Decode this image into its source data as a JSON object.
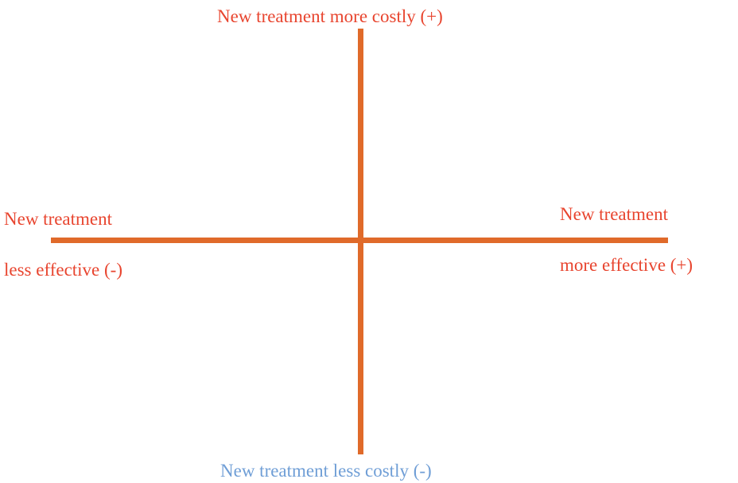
{
  "diagram": {
    "colors": {
      "axis": "#e06a2a",
      "label_primary": "#e8452f",
      "label_secondary": "#6f9ed6"
    },
    "top_label": "New treatment more costly (+)",
    "bottom_label": "New treatment less costly (-)",
    "left_label": {
      "line1": "New treatment",
      "line2": "less effective (-)"
    },
    "right_label": {
      "line1": "New treatment",
      "line2": "more effective (+)"
    }
  }
}
